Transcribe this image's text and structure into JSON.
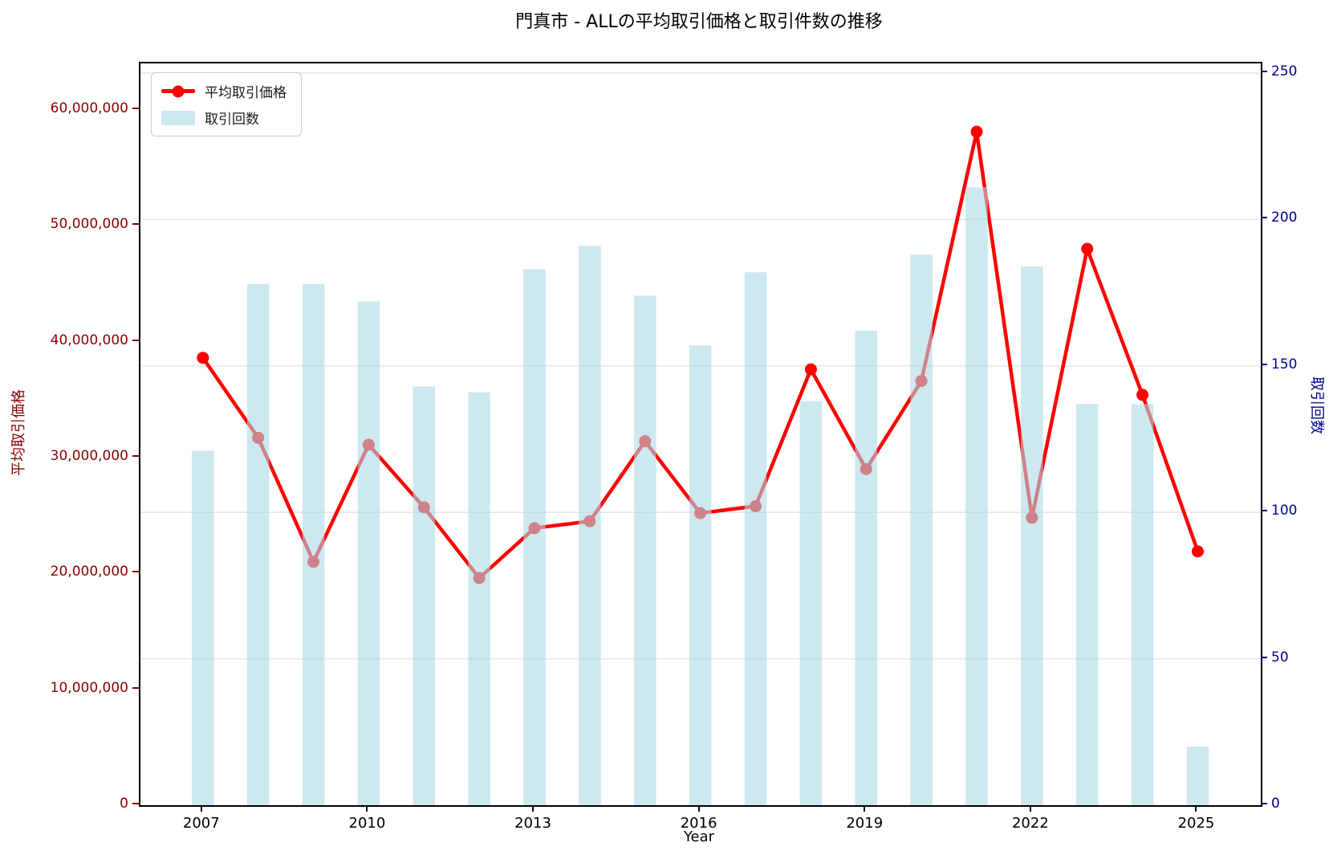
{
  "title": "門真市 - ALLの平均取引価格と取引件数の推移",
  "axes": {
    "x_label": "Year",
    "y_left_label": "平均取引価格",
    "y_right_label": "取引回数"
  },
  "legend": {
    "items": [
      {
        "label": "平均取引価格",
        "swatch": "line-marker"
      },
      {
        "label": "取引回数",
        "swatch": "bar-patch"
      }
    ]
  },
  "colors": {
    "line": "#ff0000",
    "marker": "#ff0000",
    "bar_fill": "#add8e6",
    "bar_opacity": 0.6,
    "left_axis": "#8b0000",
    "right_axis": "#00008b",
    "grid": "#e6e6e6",
    "spine": "#000000"
  },
  "chart_data": {
    "type": "line+bar dual-axis",
    "categories": [
      2007,
      2008,
      2009,
      2010,
      2011,
      2012,
      2013,
      2014,
      2015,
      2016,
      2017,
      2018,
      2019,
      2020,
      2021,
      2022,
      2023,
      2024,
      2025
    ],
    "series": [
      {
        "name": "平均取引価格",
        "type": "line",
        "axis": "left",
        "values": [
          38600000,
          31700000,
          21000000,
          31100000,
          25700000,
          19600000,
          23900000,
          24500000,
          31400000,
          25200000,
          25800000,
          37600000,
          29000000,
          36600000,
          58100000,
          24800000,
          48000000,
          35400000,
          21900000
        ]
      },
      {
        "name": "取引回数",
        "type": "bar",
        "axis": "right",
        "values": [
          121,
          178,
          178,
          172,
          143,
          141,
          183,
          191,
          174,
          157,
          182,
          138,
          162,
          188,
          211,
          184,
          137,
          137,
          20
        ]
      }
    ],
    "title": "門真市 - ALLの平均取引価格と取引件数の推移",
    "xlabel": "Year",
    "ylabel_left": "平均取引価格",
    "ylabel_right": "取引回数",
    "xlim": [
      2005.87,
      2026.14
    ],
    "ylim_left": [
      0,
      64000000
    ],
    "ylim_right": [
      0,
      253.3
    ],
    "x_ticks": [
      2007,
      2010,
      2013,
      2016,
      2019,
      2022,
      2025
    ],
    "x_tick_labels": [
      "2007",
      "2010",
      "2013",
      "2016",
      "2019",
      "2022",
      "2025"
    ],
    "y_left_ticks": [
      0,
      10000000,
      20000000,
      30000000,
      40000000,
      50000000,
      60000000
    ],
    "y_left_tick_labels": [
      "0",
      "10,000,000",
      "20,000,000",
      "30,000,000",
      "40,000,000",
      "50,000,000",
      "60,000,000"
    ],
    "y_right_ticks": [
      0,
      50,
      100,
      150,
      200,
      250
    ],
    "y_right_tick_labels": [
      "0",
      "50",
      "100",
      "150",
      "200",
      "250"
    ],
    "grid": "horizontal, aligned to right-axis ticks",
    "legend_position": "upper-left",
    "bar_width_year_units": 0.4,
    "draw_order": "line and markers first, semi-transparent bars on top"
  }
}
